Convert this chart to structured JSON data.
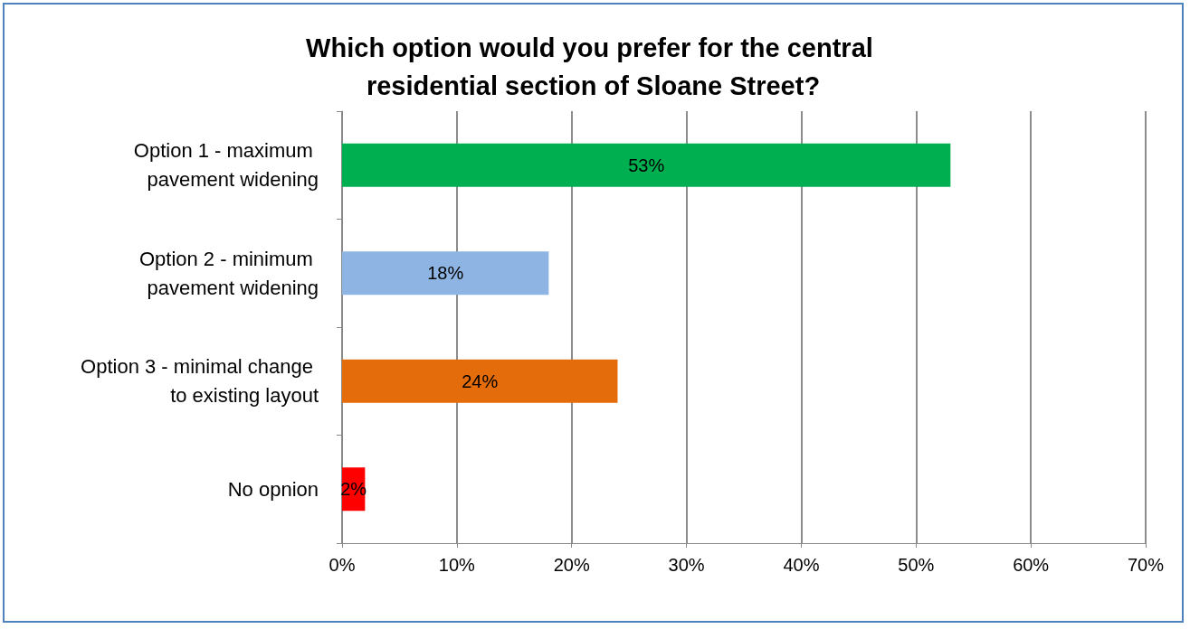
{
  "chart_data": {
    "type": "bar",
    "orientation": "horizontal",
    "title": "Which option would you prefer for the central residential section of Sloane Street?",
    "categories": [
      "Option 1 - maximum pavement widening",
      "Option 2 - minimum pavement widening",
      "Option 3 - minimal change to existing layout",
      "No opnion"
    ],
    "values": [
      53,
      18,
      24,
      2
    ],
    "colors": [
      "#00b050",
      "#8db4e2",
      "#e46c0a",
      "#ff0000"
    ],
    "value_labels": [
      "53%",
      "18%",
      "24%",
      "2%"
    ],
    "xlim": [
      0,
      70
    ],
    "xticks": [
      {
        "value": 0,
        "label": "0%"
      },
      {
        "value": 10,
        "label": "10%"
      },
      {
        "value": 20,
        "label": "20%"
      },
      {
        "value": 30,
        "label": "30%"
      },
      {
        "value": 40,
        "label": "40%"
      },
      {
        "value": 50,
        "label": "50%"
      },
      {
        "value": 60,
        "label": "60%"
      },
      {
        "value": 70,
        "label": "70%"
      }
    ],
    "grid": "x"
  }
}
